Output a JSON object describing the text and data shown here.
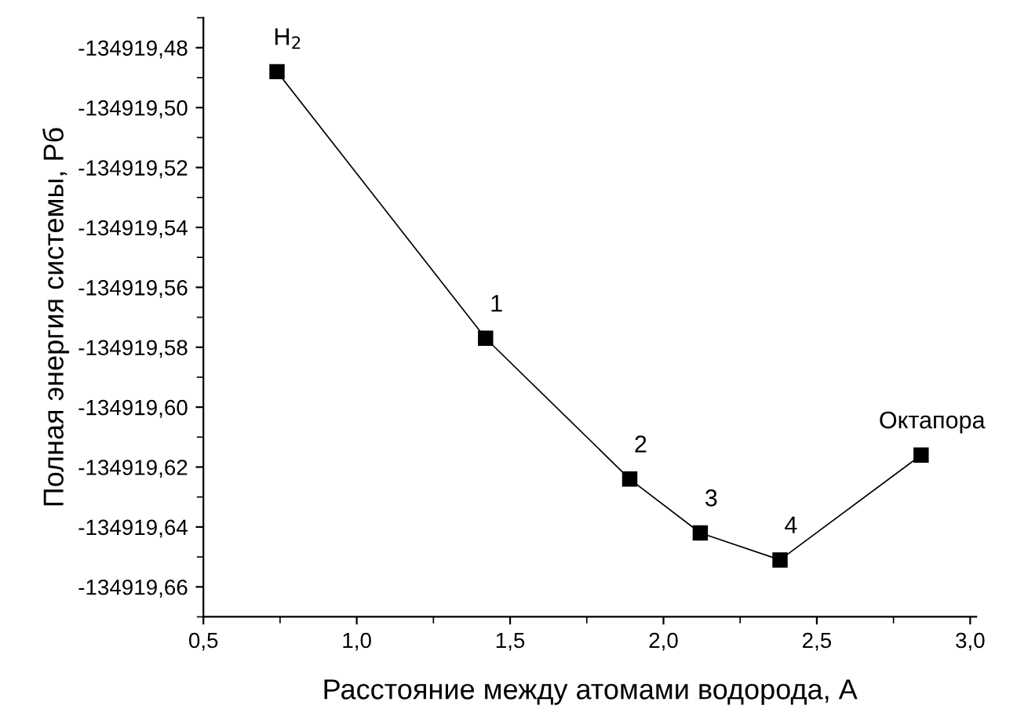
{
  "chart_data": {
    "type": "line",
    "xlabel": "Расстояние между атомами водорода, А",
    "ylabel": "Полная энергия системы, Рб",
    "x": [
      0.74,
      1.42,
      1.89,
      2.12,
      2.38,
      2.84
    ],
    "series": [
      {
        "color": "#000000",
        "values": [
          -134919.488,
          -134919.577,
          -134919.624,
          -134919.642,
          -134919.651,
          -134919.616
        ]
      }
    ],
    "marker": "square",
    "line_style": "solid",
    "grid": false,
    "legend": false,
    "xlim": [
      0.5,
      3.02
    ],
    "xticks": [
      {
        "value": 0.5,
        "label": "0,5"
      },
      {
        "value": 1.0,
        "label": "1,0"
      },
      {
        "value": 1.5,
        "label": "1,5"
      },
      {
        "value": 2.0,
        "label": "2,0"
      },
      {
        "value": 2.5,
        "label": "2,5"
      },
      {
        "value": 3.0,
        "label": "3,0"
      }
    ],
    "ylim": [
      -134919.67,
      -134919.47
    ],
    "yticks": [
      {
        "value": -134919.48,
        "label": "-134919,48"
      },
      {
        "value": -134919.5,
        "label": "-134919,50"
      },
      {
        "value": -134919.52,
        "label": "-134919,52"
      },
      {
        "value": -134919.54,
        "label": "-134919,54"
      },
      {
        "value": -134919.56,
        "label": "-134919,56"
      },
      {
        "value": -134919.58,
        "label": "-134919,58"
      },
      {
        "value": -134919.6,
        "label": "-134919,60"
      },
      {
        "value": -134919.62,
        "label": "-134919,62"
      },
      {
        "value": -134919.64,
        "label": "-134919,64"
      },
      {
        "value": -134919.66,
        "label": "-134919,66"
      }
    ],
    "annotations": [
      {
        "text": "H$_{2}$",
        "x": 0.74,
        "y": -134919.488
      },
      {
        "text": "1",
        "x": 1.42,
        "y": -134919.577
      },
      {
        "text": "2",
        "x": 1.89,
        "y": -134919.624
      },
      {
        "text": "3",
        "x": 2.12,
        "y": -134919.642
      },
      {
        "text": "4",
        "x": 2.38,
        "y": -134919.651
      },
      {
        "text": "Октапора",
        "x": 2.84,
        "y": -134919.616
      }
    ]
  }
}
